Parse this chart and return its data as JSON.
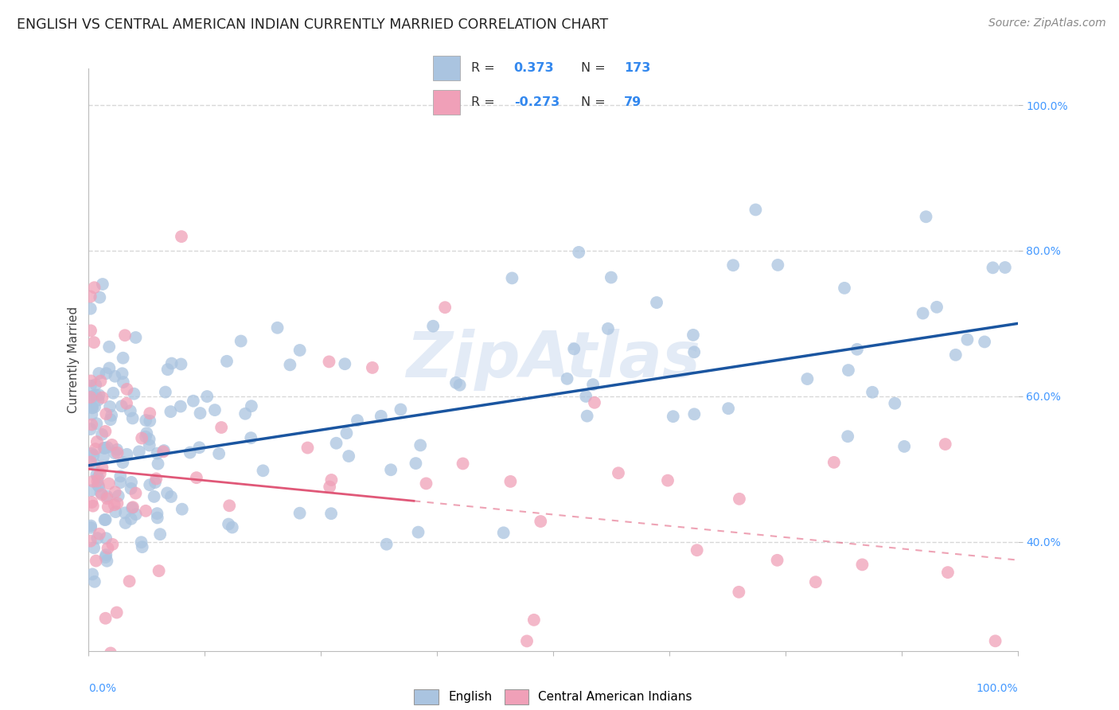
{
  "title": "ENGLISH VS CENTRAL AMERICAN INDIAN CURRENTLY MARRIED CORRELATION CHART",
  "source": "Source: ZipAtlas.com",
  "ylabel": "Currently Married",
  "legend_labels": [
    "English",
    "Central American Indians"
  ],
  "blue_R": "0.373",
  "blue_N": "173",
  "pink_R": "-0.273",
  "pink_N": "79",
  "blue_color": "#aac4e0",
  "blue_line_color": "#1a55a0",
  "pink_color": "#f0a0b8",
  "pink_line_color": "#e05878",
  "watermark_color": "#c8d8ee",
  "title_fontsize": 12.5,
  "source_fontsize": 10,
  "axis_label_fontsize": 11,
  "tick_fontsize": 10,
  "legend_fontsize": 11,
  "ytick_color": "#4499ff",
  "xtick_color": "#4499ff",
  "grid_color": "#d8d8d8",
  "xlim": [
    0,
    100
  ],
  "ylim_low": 25,
  "ylim_high": 105,
  "yticks": [
    40,
    60,
    80,
    100
  ],
  "scatter_size": 130,
  "scatter_alpha": 0.75,
  "blue_line_start_y": 50.5,
  "blue_line_end_y": 70.0,
  "pink_line_start_y": 50.0,
  "pink_line_end_y": 37.5,
  "pink_dash_end_y": 20.0
}
